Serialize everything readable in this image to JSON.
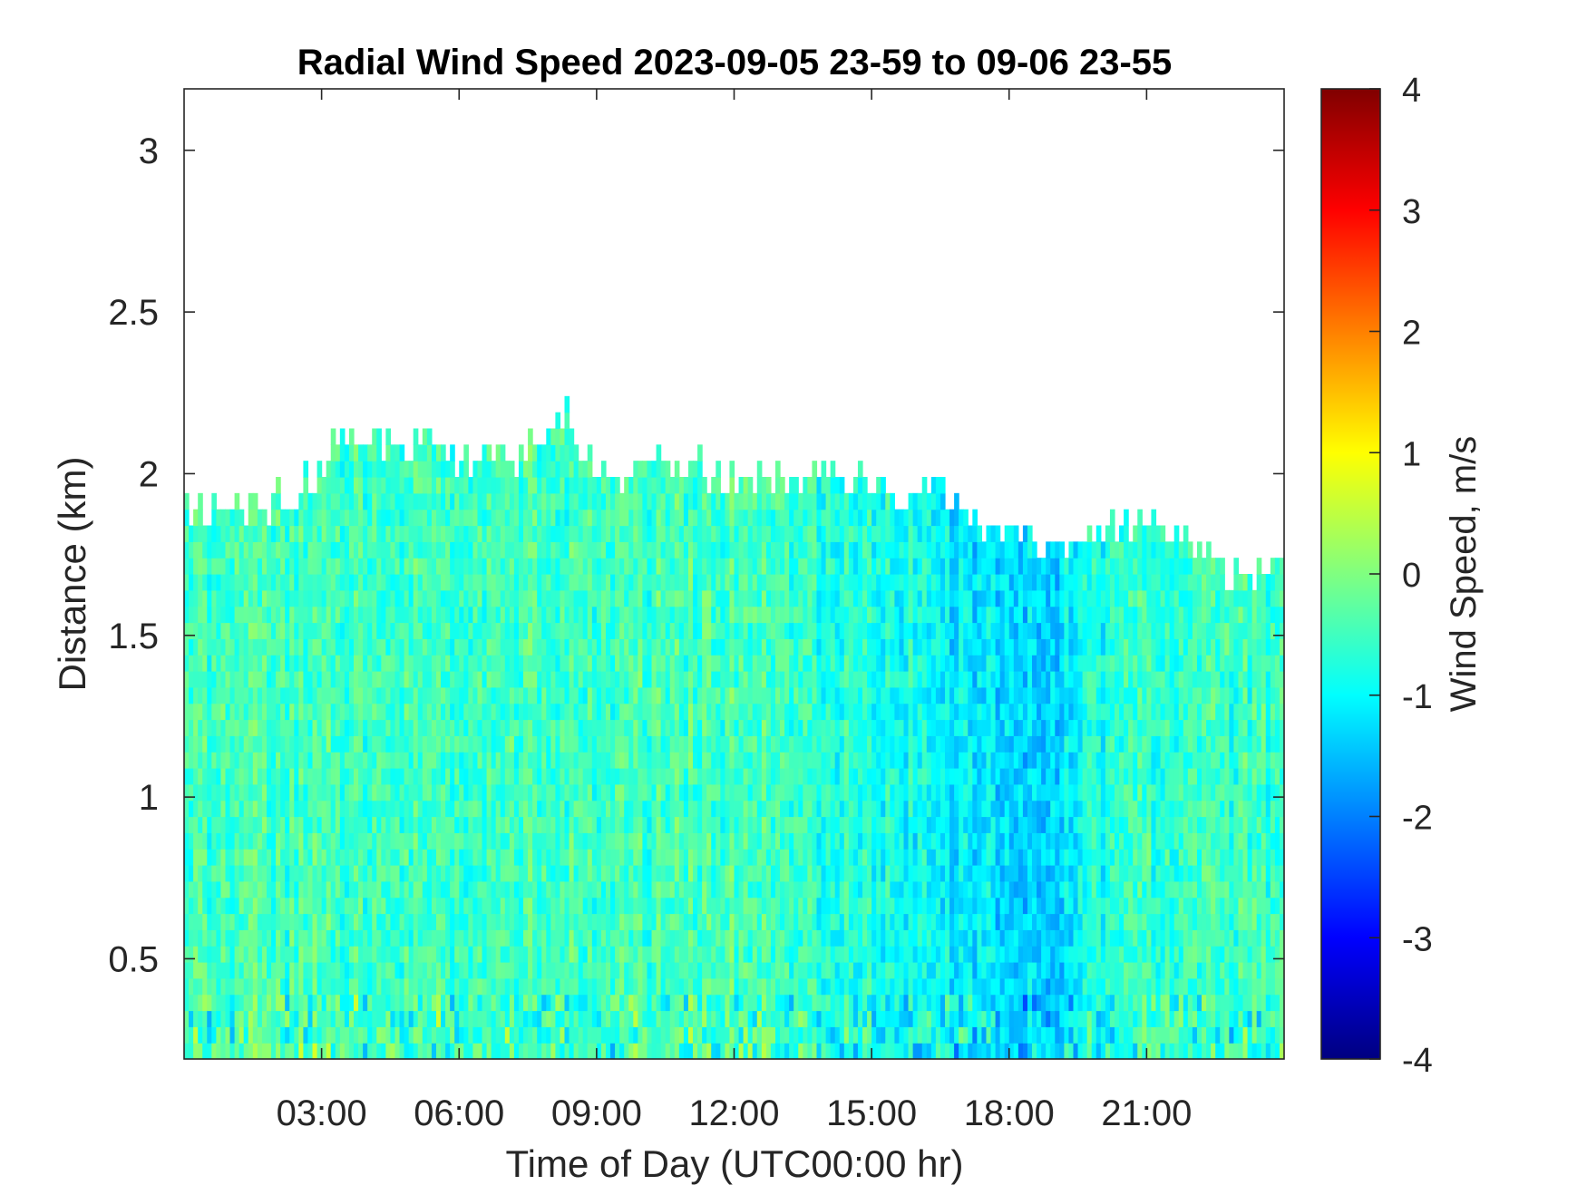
{
  "chart_data": {
    "type": "heatmap",
    "title": "Radial Wind Speed 2023-09-05 23-59 to 09-06 23-55",
    "xlabel": "Time of Day (UTC00:00 hr)",
    "ylabel": "Distance (km)",
    "colorbar_label": "Wind Speed, m/s",
    "x_unit": "hours since 00:00 UTC",
    "xlim": [
      0,
      24
    ],
    "ylim": [
      0.19,
      3.19
    ],
    "clim": [
      -4,
      4
    ],
    "colormap": "jet",
    "grid": false,
    "x_ticks": [
      {
        "value": 3,
        "label": "03:00"
      },
      {
        "value": 6,
        "label": "06:00"
      },
      {
        "value": 9,
        "label": "09:00"
      },
      {
        "value": 12,
        "label": "12:00"
      },
      {
        "value": 15,
        "label": "15:00"
      },
      {
        "value": 18,
        "label": "18:00"
      },
      {
        "value": 21,
        "label": "21:00"
      }
    ],
    "y_ticks": [
      {
        "value": 0.5,
        "label": "0.5"
      },
      {
        "value": 1,
        "label": "1"
      },
      {
        "value": 1.5,
        "label": "1.5"
      },
      {
        "value": 2,
        "label": "2"
      },
      {
        "value": 2.5,
        "label": "2.5"
      },
      {
        "value": 3,
        "label": "3"
      }
    ],
    "colorbar_ticks": [
      {
        "value": -4,
        "label": "-4"
      },
      {
        "value": -3,
        "label": "-3"
      },
      {
        "value": -2,
        "label": "-2"
      },
      {
        "value": -1,
        "label": "-1"
      },
      {
        "value": 0,
        "label": "0"
      },
      {
        "value": 1,
        "label": "1"
      },
      {
        "value": 2,
        "label": "2"
      },
      {
        "value": 3,
        "label": "3"
      },
      {
        "value": 4,
        "label": "4"
      }
    ],
    "data_top_profile": [
      {
        "t": 0,
        "km": 1.88
      },
      {
        "t": 1,
        "km": 1.88
      },
      {
        "t": 1.5,
        "km": 1.9
      },
      {
        "t": 2.5,
        "km": 1.94
      },
      {
        "t": 3.5,
        "km": 2.12
      },
      {
        "t": 5,
        "km": 2.1
      },
      {
        "t": 6,
        "km": 2.04
      },
      {
        "t": 7.5,
        "km": 2.06
      },
      {
        "t": 8.3,
        "km": 2.18
      },
      {
        "t": 9,
        "km": 2.02
      },
      {
        "t": 10.5,
        "km": 2.02
      },
      {
        "t": 12,
        "km": 2.0
      },
      {
        "t": 13.5,
        "km": 2.0
      },
      {
        "t": 15,
        "km": 1.98
      },
      {
        "t": 16.5,
        "km": 1.94
      },
      {
        "t": 17.5,
        "km": 1.86
      },
      {
        "t": 18,
        "km": 1.82
      },
      {
        "t": 19.5,
        "km": 1.78
      },
      {
        "t": 20.5,
        "km": 1.86
      },
      {
        "t": 21.5,
        "km": 1.84
      },
      {
        "t": 22.5,
        "km": 1.7
      },
      {
        "t": 24,
        "km": 1.7
      }
    ],
    "speed_profile": [
      {
        "t": 0,
        "mean": -0.55
      },
      {
        "t": 3,
        "mean": -0.5
      },
      {
        "t": 6,
        "mean": -0.45
      },
      {
        "t": 9,
        "mean": -0.5
      },
      {
        "t": 12,
        "mean": -0.45
      },
      {
        "t": 14,
        "mean": -0.65
      },
      {
        "t": 16,
        "mean": -0.85
      },
      {
        "t": 17,
        "mean": -1.2
      },
      {
        "t": 19,
        "mean": -1.3
      },
      {
        "t": 20.5,
        "mean": -0.6
      },
      {
        "t": 22,
        "mean": -0.55
      },
      {
        "t": 24,
        "mean": -0.55
      }
    ]
  }
}
